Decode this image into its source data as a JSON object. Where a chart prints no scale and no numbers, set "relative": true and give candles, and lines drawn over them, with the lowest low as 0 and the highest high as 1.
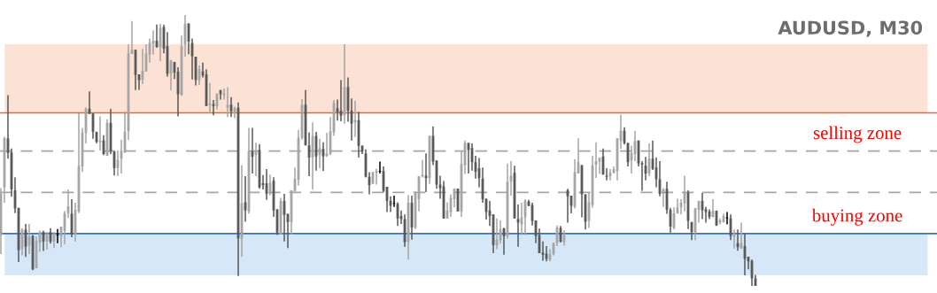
{
  "chart_data": {
    "type": "candlestick",
    "title": "AUDUSD, M30",
    "relative": true,
    "categories": [
      null,
      null,
      null,
      null,
      null,
      null,
      null,
      null,
      null,
      null,
      null,
      null,
      null,
      null,
      null,
      null,
      null,
      null,
      null,
      null,
      null,
      null,
      null,
      null,
      null,
      null,
      null,
      null,
      null,
      null,
      null,
      null,
      null,
      null,
      null,
      null,
      null,
      null,
      null,
      null,
      null,
      null,
      null,
      null,
      null,
      null,
      null,
      null,
      null,
      null,
      null,
      null,
      null,
      null,
      null,
      null,
      null,
      null,
      null,
      null,
      null,
      null,
      null,
      null,
      null,
      null,
      null,
      null,
      null,
      null,
      null,
      null,
      null,
      null,
      null,
      null,
      null,
      null,
      null,
      null,
      null,
      null,
      null,
      null,
      null,
      null,
      null,
      null,
      null,
      null,
      null,
      null,
      null,
      null,
      null,
      null,
      null,
      null,
      null,
      null,
      null,
      null,
      null,
      null,
      null,
      null,
      null,
      null,
      null,
      null,
      null,
      null,
      null,
      null,
      null,
      null,
      null,
      null,
      null,
      null,
      null,
      null,
      null,
      null,
      null,
      null,
      null,
      null,
      null,
      null,
      null,
      null,
      null,
      null,
      null,
      null,
      null,
      null,
      null,
      null,
      null,
      null,
      null,
      null,
      null,
      null,
      null,
      null,
      null,
      null,
      null,
      null,
      null,
      null,
      null,
      null,
      null,
      null,
      null,
      null,
      null,
      null,
      null,
      null,
      null,
      null,
      null,
      null,
      null,
      null,
      null,
      null,
      null,
      null,
      null,
      null,
      null,
      null,
      null,
      null,
      null,
      null,
      null,
      null,
      null,
      null,
      null,
      null,
      null,
      null,
      null,
      null,
      null,
      null,
      null,
      null,
      null,
      null,
      null,
      null,
      null,
      null,
      null,
      null,
      null,
      null,
      null,
      null,
      null,
      null,
      null,
      null,
      null,
      null
    ],
    "ohlc": [
      [
        0.188,
        0.361,
        0.118,
        0.34
      ],
      [
        0.364,
        0.551,
        0.307,
        0.545
      ],
      [
        0.545,
        0.704,
        0.47,
        0.491
      ],
      [
        0.493,
        0.507,
        0.329,
        0.356
      ],
      [
        0.353,
        0.401,
        0.269,
        0.286
      ],
      [
        0.288,
        0.288,
        0.088,
        0.132
      ],
      [
        0.136,
        0.213,
        0.113,
        0.208
      ],
      [
        0.208,
        0.229,
        0.107,
        0.145
      ],
      [
        0.149,
        0.229,
        0.118,
        0.183
      ],
      [
        0.185,
        0.188,
        0.058,
        0.061
      ],
      [
        0.065,
        0.183,
        0.065,
        0.167
      ],
      [
        0.158,
        0.204,
        0.126,
        0.199
      ],
      [
        0.199,
        0.204,
        0.129,
        0.164
      ],
      [
        0.164,
        0.199,
        0.134,
        0.193
      ],
      [
        0.199,
        0.213,
        0.156,
        0.164
      ],
      [
        0.164,
        0.199,
        0.14,
        0.193
      ],
      [
        0.187,
        0.21,
        0.158,
        0.186
      ],
      [
        0.184,
        0.219,
        0.143,
        0.219
      ],
      [
        0.203,
        0.277,
        0.154,
        0.268
      ],
      [
        0.268,
        0.356,
        0.251,
        0.294
      ],
      [
        0.267,
        0.32,
        0.18,
        0.19
      ],
      [
        0.19,
        0.307,
        0.164,
        0.281
      ],
      [
        0.275,
        0.637,
        0.269,
        0.443
      ],
      [
        0.441,
        0.583,
        0.421,
        0.567
      ],
      [
        0.565,
        0.659,
        0.526,
        0.654
      ],
      [
        0.654,
        0.718,
        0.634,
        0.636
      ],
      [
        0.637,
        0.637,
        0.543,
        0.569
      ],
      [
        0.569,
        0.569,
        0.526,
        0.532
      ],
      [
        0.53,
        0.626,
        0.5,
        0.537
      ],
      [
        0.537,
        0.556,
        0.483,
        0.487
      ],
      [
        0.48,
        0.615,
        0.48,
        0.602
      ],
      [
        0.602,
        0.654,
        0.487,
        0.498
      ],
      [
        0.496,
        0.496,
        0.408,
        0.435
      ],
      [
        0.435,
        0.5,
        0.405,
        0.466
      ],
      [
        0.47,
        0.54,
        0.415,
        0.499
      ],
      [
        0.493,
        0.645,
        0.491,
        0.569
      ],
      [
        0.571,
        0.892,
        0.539,
        0.859
      ],
      [
        0.857,
        0.978,
        0.857,
        0.872
      ],
      [
        0.872,
        0.872,
        0.723,
        0.779
      ],
      [
        0.781,
        0.781,
        0.724,
        0.76
      ],
      [
        0.76,
        0.875,
        0.745,
        0.794
      ],
      [
        0.792,
        0.892,
        0.792,
        0.857
      ],
      [
        0.855,
        0.913,
        0.824,
        0.897
      ],
      [
        0.894,
        0.944,
        0.854,
        0.905
      ],
      [
        0.905,
        0.965,
        0.879,
        0.883
      ],
      [
        0.881,
        0.967,
        0.83,
        0.953
      ],
      [
        0.956,
        0.965,
        0.859,
        0.876
      ],
      [
        0.885,
        0.937,
        0.773,
        0.783
      ],
      [
        0.783,
        0.835,
        0.722,
        0.831
      ],
      [
        0.827,
        0.827,
        0.764,
        0.788
      ],
      [
        0.791,
        0.807,
        0.626,
        0.708
      ],
      [
        0.705,
        0.924,
        0.702,
        0.885
      ],
      [
        0.892,
        1.0,
        0.846,
        0.967
      ],
      [
        0.969,
        0.969,
        0.855,
        0.902
      ],
      [
        0.897,
        0.913,
        0.762,
        0.848
      ],
      [
        0.846,
        0.846,
        0.74,
        0.76
      ],
      [
        0.76,
        0.814,
        0.742,
        0.801
      ],
      [
        0.792,
        0.824,
        0.77,
        0.777
      ],
      [
        0.781,
        0.8,
        0.664,
        0.664
      ],
      [
        0.667,
        0.749,
        0.637,
        0.675
      ],
      [
        0.671,
        0.686,
        0.63,
        0.664
      ],
      [
        0.664,
        0.71,
        0.651,
        0.71
      ],
      [
        0.723,
        0.723,
        0.688,
        0.708
      ],
      [
        0.703,
        0.729,
        0.688,
        0.71
      ],
      [
        0.658,
        0.734,
        0.623,
        0.669
      ],
      [
        0.669,
        0.697,
        0.623,
        0.645
      ],
      [
        0.638,
        0.662,
        0.619,
        0.656
      ],
      [
        0.658,
        0.677,
        0.037,
        0.175
      ],
      [
        0.175,
        0.446,
        0.107,
        0.305
      ],
      [
        0.309,
        0.405,
        0.237,
        0.279
      ],
      [
        0.275,
        0.583,
        0.266,
        0.498
      ],
      [
        0.496,
        0.583,
        0.415,
        0.477
      ],
      [
        0.484,
        0.529,
        0.405,
        0.498
      ],
      [
        0.502,
        0.524,
        0.359,
        0.364
      ],
      [
        0.379,
        0.409,
        0.356,
        0.372
      ],
      [
        0.379,
        0.431,
        0.318,
        0.34
      ],
      [
        0.34,
        0.411,
        0.334,
        0.381
      ],
      [
        0.388,
        0.401,
        0.255,
        0.279
      ],
      [
        0.283,
        0.283,
        0.188,
        0.197
      ],
      [
        0.19,
        0.325,
        0.19,
        0.314
      ],
      [
        0.314,
        0.34,
        0.164,
        0.262
      ],
      [
        0.266,
        0.266,
        0.14,
        0.236
      ],
      [
        0.236,
        0.353,
        0.19,
        0.353
      ],
      [
        0.351,
        0.437,
        0.348,
        0.396
      ],
      [
        0.392,
        0.576,
        0.37,
        0.547
      ],
      [
        0.547,
        0.69,
        0.54,
        0.669
      ],
      [
        0.669,
        0.723,
        0.519,
        0.519
      ],
      [
        0.519,
        0.567,
        0.405,
        0.474
      ],
      [
        0.474,
        0.604,
        0.356,
        0.554
      ],
      [
        0.554,
        0.569,
        0.426,
        0.478
      ],
      [
        0.483,
        0.543,
        0.435,
        0.509
      ],
      [
        0.506,
        0.53,
        0.424,
        0.478
      ],
      [
        0.48,
        0.565,
        0.476,
        0.489
      ],
      [
        0.487,
        0.623,
        0.483,
        0.571
      ],
      [
        0.567,
        0.686,
        0.554,
        0.675
      ],
      [
        0.656,
        0.688,
        0.61,
        0.641
      ],
      [
        0.647,
        0.76,
        0.608,
        0.628
      ],
      [
        0.63,
        0.892,
        0.599,
        0.734
      ],
      [
        0.734,
        0.77,
        0.606,
        0.647
      ],
      [
        0.647,
        0.692,
        0.537,
        0.599
      ],
      [
        0.604,
        0.684,
        0.55,
        0.612
      ],
      [
        0.612,
        0.643,
        0.474,
        0.517
      ],
      [
        0.518,
        0.518,
        0.487,
        0.496
      ],
      [
        0.489,
        0.504,
        0.4,
        0.403
      ],
      [
        0.403,
        0.42,
        0.338,
        0.372
      ],
      [
        0.377,
        0.421,
        0.377,
        0.42
      ],
      [
        0.418,
        0.433,
        0.374,
        0.424
      ],
      [
        0.424,
        0.459,
        0.415,
        0.422
      ],
      [
        0.424,
        0.441,
        0.346,
        0.351
      ],
      [
        0.366,
        0.366,
        0.273,
        0.314
      ],
      [
        0.314,
        0.331,
        0.273,
        0.296
      ],
      [
        0.305,
        0.333,
        0.292,
        0.303
      ],
      [
        0.303,
        0.309,
        0.221,
        0.249
      ],
      [
        0.258,
        0.279,
        0.229,
        0.247
      ],
      [
        0.247,
        0.264,
        0.145,
        0.162
      ],
      [
        0.162,
        0.335,
        0.097,
        0.307
      ],
      [
        0.307,
        0.333,
        0.171,
        0.216
      ],
      [
        0.216,
        0.348,
        0.21,
        0.344
      ],
      [
        0.32,
        0.405,
        0.275,
        0.405
      ],
      [
        0.405,
        0.465,
        0.4,
        0.411
      ],
      [
        0.407,
        0.489,
        0.346,
        0.398
      ],
      [
        0.398,
        0.554,
        0.377,
        0.554
      ],
      [
        0.554,
        0.589,
        0.446,
        0.459
      ],
      [
        0.463,
        0.463,
        0.359,
        0.374
      ],
      [
        0.374,
        0.407,
        0.322,
        0.361
      ],
      [
        0.368,
        0.387,
        0.249,
        0.249
      ],
      [
        0.249,
        0.309,
        0.249,
        0.279
      ],
      [
        0.273,
        0.338,
        0.255,
        0.325
      ],
      [
        0.32,
        0.359,
        0.29,
        0.359
      ],
      [
        0.359,
        0.359,
        0.275,
        0.275
      ],
      [
        0.275,
        0.5,
        0.255,
        0.45
      ],
      [
        0.446,
        0.537,
        0.413,
        0.528
      ],
      [
        0.528,
        0.528,
        0.415,
        0.502
      ],
      [
        0.509,
        0.526,
        0.426,
        0.457
      ],
      [
        0.457,
        0.48,
        0.396,
        0.422
      ],
      [
        0.435,
        0.472,
        0.364,
        0.398
      ],
      [
        0.396,
        0.437,
        0.307,
        0.32
      ],
      [
        0.322,
        0.322,
        0.245,
        0.273
      ],
      [
        0.279,
        0.314,
        0.221,
        0.258
      ],
      [
        0.264,
        0.264,
        0.121,
        0.151
      ],
      [
        0.149,
        0.249,
        0.136,
        0.171
      ],
      [
        0.169,
        0.242,
        0.156,
        0.21
      ],
      [
        0.212,
        0.215,
        0.115,
        0.184
      ],
      [
        0.184,
        0.452,
        0.175,
        0.385
      ],
      [
        0.385,
        0.461,
        0.333,
        0.407
      ],
      [
        0.418,
        0.444,
        0.249,
        0.249
      ],
      [
        0.247,
        0.301,
        0.145,
        0.234
      ],
      [
        0.227,
        0.307,
        0.188,
        0.253
      ],
      [
        0.253,
        0.32,
        0.188,
        0.314
      ],
      [
        0.312,
        0.318,
        0.294,
        0.296
      ],
      [
        0.299,
        0.307,
        0.223,
        0.24
      ],
      [
        0.242,
        0.242,
        0.158,
        0.184
      ],
      [
        0.188,
        0.212,
        0.121,
        0.121
      ],
      [
        0.123,
        0.164,
        0.093,
        0.115
      ],
      [
        0.119,
        0.147,
        0.091,
        0.1
      ],
      [
        0.097,
        0.136,
        0.091,
        0.117
      ],
      [
        0.117,
        0.16,
        0.113,
        0.158
      ],
      [
        0.158,
        0.223,
        0.147,
        0.216
      ],
      [
        0.214,
        0.221,
        0.16,
        0.164
      ],
      [
        0.162,
        0.206,
        0.149,
        0.188
      ],
      [
        0.353,
        0.359,
        0.234,
        0.331
      ],
      [
        0.333,
        0.333,
        0.268,
        0.296
      ],
      [
        0.292,
        0.467,
        0.286,
        0.42
      ],
      [
        0.415,
        0.545,
        0.415,
        0.457
      ],
      [
        0.446,
        0.446,
        0.253,
        0.338
      ],
      [
        0.338,
        0.338,
        0.208,
        0.237
      ],
      [
        0.24,
        0.344,
        0.214,
        0.309
      ],
      [
        0.299,
        0.48,
        0.288,
        0.446
      ],
      [
        0.448,
        0.53,
        0.399,
        0.461
      ],
      [
        0.459,
        0.473,
        0.413,
        0.473
      ],
      [
        0.478,
        0.507,
        0.411,
        0.411
      ],
      [
        0.407,
        0.435,
        0.39,
        0.403
      ],
      [
        0.405,
        0.431,
        0.39,
        0.418
      ],
      [
        0.418,
        0.441,
        0.415,
        0.431
      ],
      [
        0.424,
        0.545,
        0.39,
        0.545
      ],
      [
        0.535,
        0.632,
        0.506,
        0.573
      ],
      [
        0.573,
        0.586,
        0.522,
        0.528
      ],
      [
        0.528,
        0.528,
        0.441,
        0.457
      ],
      [
        0.463,
        0.518,
        0.415,
        0.491
      ],
      [
        0.487,
        0.573,
        0.461,
        0.535
      ],
      [
        0.537,
        0.537,
        0.441,
        0.452
      ],
      [
        0.453,
        0.461,
        0.351,
        0.448
      ],
      [
        0.444,
        0.476,
        0.39,
        0.415
      ],
      [
        0.415,
        0.526,
        0.405,
        0.47
      ],
      [
        0.47,
        0.537,
        0.428,
        0.432
      ],
      [
        0.437,
        0.474,
        0.364,
        0.394
      ],
      [
        0.394,
        0.461,
        0.331,
        0.34
      ],
      [
        0.34,
        0.361,
        0.292,
        0.356
      ],
      [
        0.359,
        0.385,
        0.266,
        0.281
      ],
      [
        0.281,
        0.288,
        0.197,
        0.219
      ],
      [
        0.214,
        0.29,
        0.208,
        0.268
      ],
      [
        0.268,
        0.322,
        0.266,
        0.29
      ],
      [
        0.29,
        0.32,
        0.264,
        0.307
      ],
      [
        0.305,
        0.407,
        0.275,
        0.348
      ],
      [
        0.344,
        0.353,
        0.21,
        0.24
      ],
      [
        0.236,
        0.236,
        0.169,
        0.199
      ],
      [
        0.197,
        0.288,
        0.169,
        0.286
      ],
      [
        0.281,
        0.314,
        0.234,
        0.314
      ],
      [
        0.314,
        0.344,
        0.247,
        0.279
      ],
      [
        0.283,
        0.292,
        0.234,
        0.273
      ],
      [
        0.275,
        0.283,
        0.247,
        0.255
      ],
      [
        0.255,
        0.32,
        0.253,
        0.277
      ],
      [
        0.277,
        0.279,
        0.221,
        0.223
      ],
      [
        0.234,
        0.249,
        0.227,
        0.242
      ],
      [
        0.236,
        0.266,
        0.234,
        0.258
      ],
      [
        0.251,
        0.273,
        0.227,
        0.25
      ],
      [
        0.249,
        0.264,
        0.169,
        0.184
      ],
      [
        0.182,
        0.208,
        0.138,
        0.193
      ],
      [
        0.158,
        0.208,
        0.13,
        0.143
      ],
      [
        0.138,
        0.234,
        0.138,
        0.158
      ],
      [
        0.147,
        0.193,
        0.039,
        0.1
      ],
      [
        0.108,
        0.108,
        0.061,
        0.091
      ],
      [
        0.093,
        0.097,
        0.0,
        0.028
      ],
      [
        0.028,
        0.041,
        0.0,
        0.0
      ]
    ],
    "colors": [
      "#a5a5a5",
      "#a5a5a5",
      "#595959",
      "#595959",
      "#595959",
      "#595959",
      "#a5a5a5",
      "#595959",
      "#a5a5a5",
      "#595959",
      "#a5a5a5",
      "#a5a5a5",
      "#595959",
      "#a5a5a5",
      "#595959",
      "#a5a5a5",
      "#000000",
      "#a5a5a5",
      "#a5a5a5",
      "#a5a5a5",
      "#595959",
      "#a5a5a5",
      "#a5a5a5",
      "#a5a5a5",
      "#a5a5a5",
      "#595959",
      "#595959",
      "#595959",
      "#a5a5a5",
      "#595959",
      "#a5a5a5",
      "#595959",
      "#595959",
      "#a5a5a5",
      "#a5a5a5",
      "#a5a5a5",
      "#a5a5a5",
      "#a5a5a5",
      "#595959",
      "#595959",
      "#a5a5a5",
      "#a5a5a5",
      "#a5a5a5",
      "#a5a5a5",
      "#595959",
      "#a5a5a5",
      "#595959",
      "#595959",
      "#a5a5a5",
      "#595959",
      "#595959",
      "#a5a5a5",
      "#a5a5a5",
      "#595959",
      "#595959",
      "#595959",
      "#a5a5a5",
      "#595959",
      "#595959",
      "#a5a5a5",
      "#595959",
      "#a5a5a5",
      "#595959",
      "#a5a5a5",
      "#a5a5a5",
      "#595959",
      "#a5a5a5",
      "#595959",
      "#a5a5a5",
      "#595959",
      "#a5a5a5",
      "#595959",
      "#a5a5a5",
      "#595959",
      "#595959",
      "#595959",
      "#a5a5a5",
      "#595959",
      "#595959",
      "#a5a5a5",
      "#595959",
      "#595959",
      "#a5a5a5",
      "#a5a5a5",
      "#a5a5a5",
      "#a5a5a5",
      "#595959",
      "#595959",
      "#a5a5a5",
      "#595959",
      "#a5a5a5",
      "#595959",
      "#a5a5a5",
      "#a5a5a5",
      "#a5a5a5",
      "#595959",
      "#595959",
      "#a5a5a5",
      "#595959",
      "#595959",
      "#a5a5a5",
      "#595959",
      "#595959",
      "#595959",
      "#595959",
      "#a5a5a5",
      "#a5a5a5",
      "#000000",
      "#595959",
      "#595959",
      "#595959",
      "#000000",
      "#595959",
      "#595959",
      "#595959",
      "#a5a5a5",
      "#595959",
      "#a5a5a5",
      "#a5a5a5",
      "#a5a5a5",
      "#595959",
      "#a5a5a5",
      "#595959",
      "#595959",
      "#595959",
      "#595959",
      "#a5a5a5",
      "#a5a5a5",
      "#a5a5a5",
      "#595959",
      "#a5a5a5",
      "#a5a5a5",
      "#595959",
      "#595959",
      "#595959",
      "#595959",
      "#595959",
      "#595959",
      "#595959",
      "#595959",
      "#a5a5a5",
      "#a5a5a5",
      "#595959",
      "#a5a5a5",
      "#a5a5a5",
      "#595959",
      "#595959",
      "#a5a5a5",
      "#a5a5a5",
      "#595959",
      "#595959",
      "#595959",
      "#595959",
      "#595959",
      "#595959",
      "#a5a5a5",
      "#a5a5a5",
      "#a5a5a5",
      "#595959",
      "#a5a5a5",
      "#595959",
      "#595959",
      "#a5a5a5",
      "#a5a5a5",
      "#595959",
      "#595959",
      "#a5a5a5",
      "#a5a5a5",
      "#a5a5a5",
      "#a5a5a5",
      "#595959",
      "#595959",
      "#a5a5a5",
      "#a5a5a5",
      "#a5a5a5",
      "#a5a5a5",
      "#595959",
      "#595959",
      "#a5a5a5",
      "#a5a5a5",
      "#595959",
      "#595959",
      "#595959",
      "#a5a5a5",
      "#595959",
      "#595959",
      "#595959",
      "#a5a5a5",
      "#595959",
      "#595959",
      "#a5a5a5",
      "#a5a5a5",
      "#a5a5a5",
      "#a5a5a5",
      "#595959",
      "#595959",
      "#a5a5a5",
      "#a5a5a5",
      "#595959",
      "#595959",
      "#595959",
      "#a5a5a5",
      "#595959",
      "#a5a5a5",
      "#a5a5a5",
      "#000000",
      "#595959",
      "#a5a5a5",
      "#595959",
      "#a5a5a5",
      "#595959",
      "#595959",
      "#595959",
      "#595959"
    ],
    "bands": [
      {
        "axis": "y",
        "from": 0.639,
        "to": 0.892,
        "color": "#fbe2d5"
      },
      {
        "axis": "y",
        "from": 0.039,
        "to": 0.193,
        "color": "#d6e7f7"
      }
    ],
    "ref_lines": [
      {
        "axis": "y",
        "value": 0.639,
        "color": "#f26522",
        "line_style": "solid"
      },
      {
        "axis": "y",
        "value": 0.498,
        "color": "#a6a6a6",
        "line_style": "dashed",
        "label": "selling zone"
      },
      {
        "axis": "y",
        "value": 0.345,
        "color": "#a6a6a6",
        "line_style": "dashed"
      },
      {
        "axis": "y",
        "value": 0.193,
        "color": "#2e75c9",
        "line_style": "solid",
        "label": "buying zone"
      }
    ]
  }
}
